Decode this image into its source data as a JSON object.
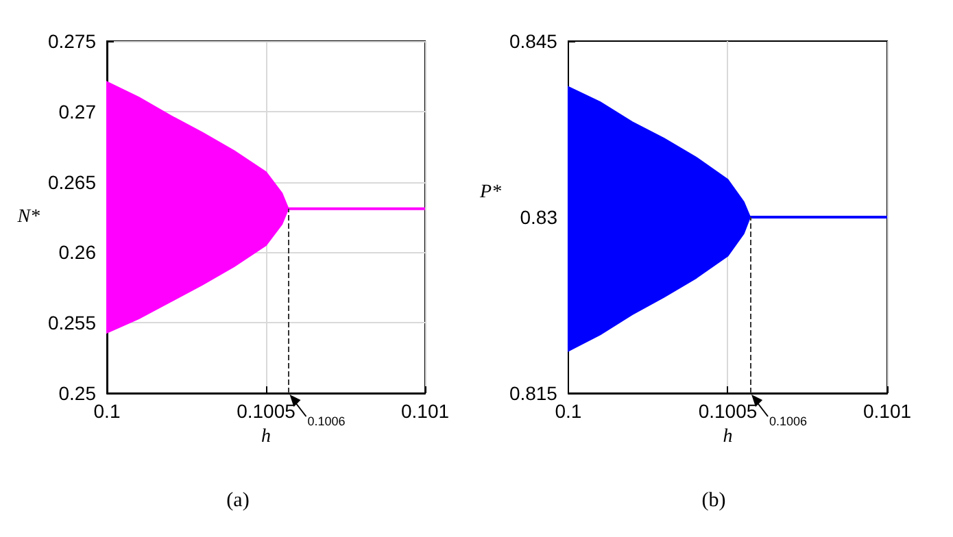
{
  "chart_data": [
    {
      "type": "line",
      "xlabel": "h",
      "ylabel": "N*",
      "xlim": [
        0.1,
        0.101
      ],
      "xticks": [
        0.1,
        0.1005,
        0.101
      ],
      "ylim": [
        0.25,
        0.275
      ],
      "yticks": [
        0.25,
        0.255,
        0.26,
        0.265,
        0.27,
        0.275
      ],
      "grid": true,
      "x": [
        0.1,
        0.1001,
        0.1002,
        0.1003,
        0.1004,
        0.1005,
        0.10055,
        0.10057,
        0.101
      ],
      "series": [
        {
          "color": "#ff00ff",
          "values": [
            0.2631,
            0.2631,
            0.2631,
            0.2631,
            0.2631,
            0.2631,
            0.2631,
            0.2631,
            0.2631
          ],
          "upper": [
            0.2721,
            0.271,
            0.2697,
            0.2685,
            0.2672,
            0.2657,
            0.2642,
            0.2631,
            0.2631
          ],
          "lower": [
            0.2543,
            0.2553,
            0.2565,
            0.2577,
            0.259,
            0.2605,
            0.262,
            0.2631,
            0.2631
          ]
        }
      ],
      "ref_lines": [
        {
          "axis": "x",
          "value": 0.10057,
          "label": "0.1006",
          "line_style": "dashed"
        }
      ],
      "annotations": [
        "(a)"
      ]
    },
    {
      "type": "line",
      "xlabel": "h",
      "ylabel": "P*",
      "xlim": [
        0.1,
        0.101
      ],
      "xticks": [
        0.1,
        0.1005,
        0.101
      ],
      "ylim": [
        0.815,
        0.845
      ],
      "yticks": [
        0.815,
        0.83,
        0.845
      ],
      "grid": "x",
      "x": [
        0.1,
        0.1001,
        0.1002,
        0.1003,
        0.1004,
        0.1005,
        0.10055,
        0.10057,
        0.101
      ],
      "series": [
        {
          "color": "#0000ff",
          "values": [
            0.83,
            0.83,
            0.83,
            0.83,
            0.83,
            0.83,
            0.83,
            0.83,
            0.83
          ],
          "upper": [
            0.8411,
            0.8398,
            0.8381,
            0.8367,
            0.8351,
            0.8332,
            0.8313,
            0.83,
            0.83
          ],
          "lower": [
            0.8186,
            0.82,
            0.8217,
            0.8232,
            0.8248,
            0.8267,
            0.8286,
            0.83,
            0.83
          ]
        }
      ],
      "ref_lines": [
        {
          "axis": "x",
          "value": 0.10057,
          "label": "0.1006",
          "line_style": "dashed"
        }
      ],
      "annotations": [
        "(b)"
      ]
    }
  ]
}
